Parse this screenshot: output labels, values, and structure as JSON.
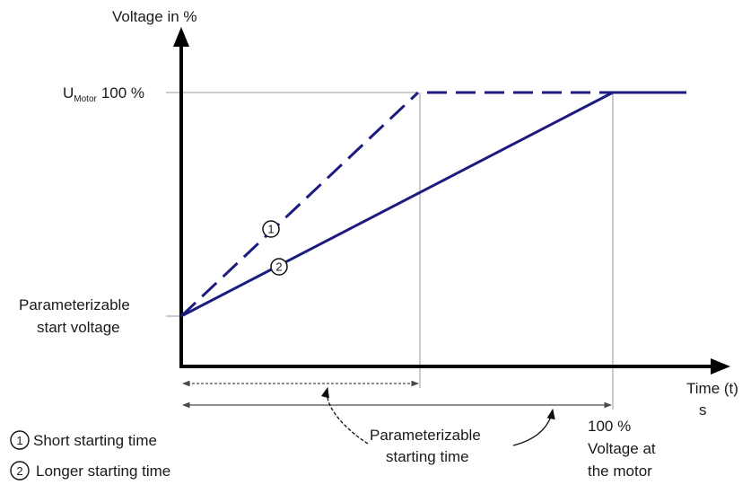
{
  "axes": {
    "y_label": "Voltage in %",
    "x_label": "Time (t)",
    "x_unit": "s"
  },
  "umotor": {
    "main": "U",
    "sub": "Motor",
    "value": "100 %"
  },
  "start_voltage": {
    "line1": "Parameterizable",
    "line2": "start voltage"
  },
  "starting_time": {
    "line1": "Parameterizable",
    "line2": "starting time"
  },
  "full_voltage": {
    "line1": "100 %",
    "line2": "Voltage at",
    "line3": "the motor"
  },
  "curves": [
    {
      "id": "1",
      "label": "Short starting time",
      "style": "dashed"
    },
    {
      "id": "2",
      "label": "Longer starting time",
      "style": "solid"
    }
  ],
  "colors": {
    "axis": "#000000",
    "curve": "#1c1c80",
    "guide": "#9a9a9a",
    "text": "#1a1a1a"
  }
}
